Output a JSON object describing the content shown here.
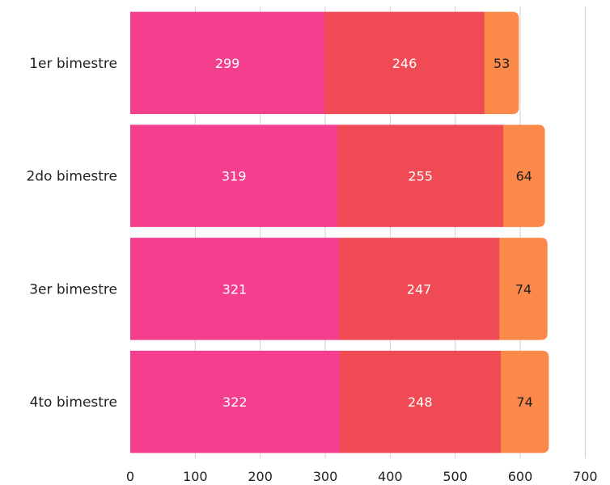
{
  "chart_data": {
    "type": "bar",
    "orientation": "horizontal",
    "stacked": true,
    "title": "",
    "xlabel": "",
    "ylabel": "",
    "xlim": [
      0,
      700
    ],
    "x_ticks": [
      0,
      100,
      200,
      300,
      400,
      500,
      600,
      700
    ],
    "grid": "vertical",
    "legend": "none",
    "categories": [
      "1er bimestre",
      "2do bimestre",
      "3er bimestre",
      "4to bimestre"
    ],
    "series": [
      {
        "color": "#f43f8e",
        "label_color": "#ffffff",
        "values": [
          299,
          319,
          321,
          322
        ]
      },
      {
        "color": "#f04a54",
        "label_color": "#ffffff",
        "values": [
          246,
          255,
          247,
          248
        ]
      },
      {
        "color": "#fb8a4a",
        "label_color": "#222222",
        "values": [
          53,
          64,
          74,
          74
        ]
      }
    ]
  }
}
